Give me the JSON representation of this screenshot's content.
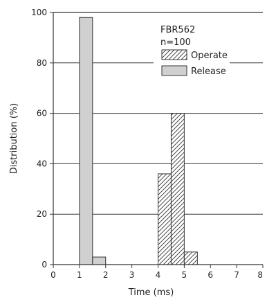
{
  "chart_data": {
    "type": "bar",
    "title": "",
    "annotation": [
      "FBR562",
      "n=100"
    ],
    "xlabel": "Time (ms)",
    "ylabel": "Distribution (%)",
    "xlim": [
      0,
      8
    ],
    "ylim": [
      0,
      100
    ],
    "xticks": [
      0,
      1,
      2,
      3,
      4,
      5,
      6,
      7,
      8
    ],
    "yticks": [
      0,
      20,
      40,
      60,
      80,
      100
    ],
    "grid": "horizontal",
    "legend_position": "top-right",
    "series": [
      {
        "name": "Operate",
        "pattern": "hatched",
        "bins": [
          {
            "x0": 4.0,
            "x1": 4.5,
            "value": 36
          },
          {
            "x0": 4.5,
            "x1": 5.0,
            "value": 60
          },
          {
            "x0": 5.0,
            "x1": 5.5,
            "value": 5
          }
        ]
      },
      {
        "name": "Release",
        "pattern": "solid",
        "color": "#d0d0d0",
        "bins": [
          {
            "x0": 1.0,
            "x1": 1.5,
            "value": 98
          },
          {
            "x0": 1.5,
            "x1": 2.0,
            "value": 3
          }
        ]
      }
    ]
  }
}
